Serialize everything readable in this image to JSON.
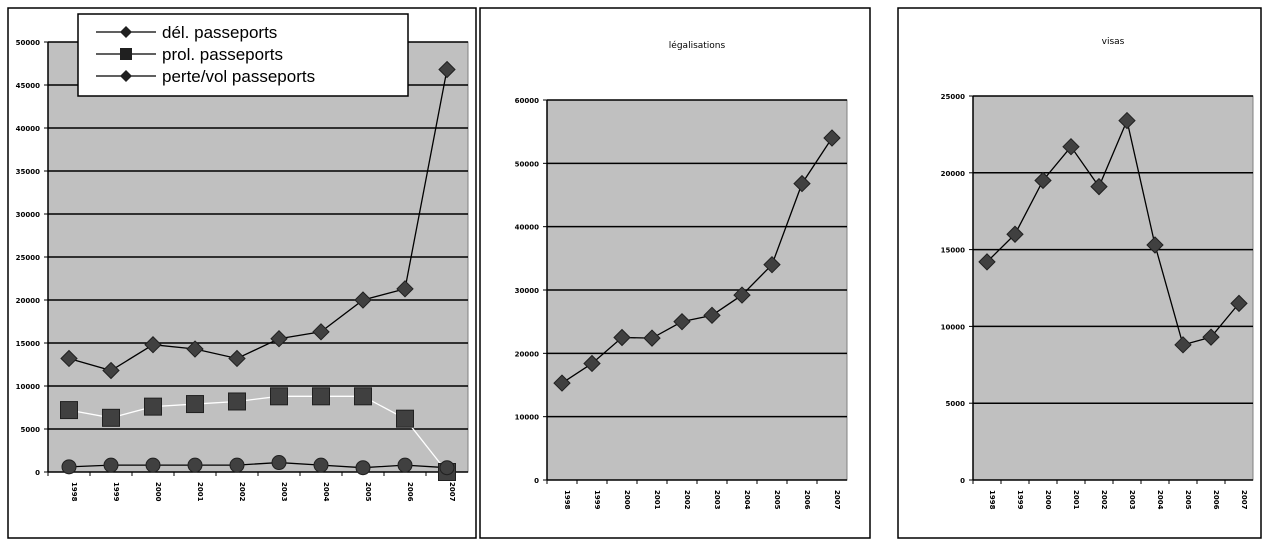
{
  "chart_data": [
    {
      "type": "line",
      "title": "",
      "xlabel": "",
      "ylabel": "",
      "categories": [
        "1998",
        "1999",
        "2000",
        "2001",
        "2002",
        "2003",
        "2004",
        "2005",
        "2006",
        "2007"
      ],
      "ylim": [
        0,
        50000
      ],
      "yticks": [
        "0",
        "5000",
        "10000",
        "15000",
        "20000",
        "25000",
        "30000",
        "35000",
        "40000",
        "45000",
        "50000"
      ],
      "grid": true,
      "legend_position": "top-left",
      "background": "#c0c0c0",
      "series": [
        {
          "name": "dél. passeports",
          "marker": "diamond",
          "line_color": "#000000",
          "values": [
            13200,
            11800,
            14800,
            14300,
            13200,
            15500,
            16300,
            20000,
            21300,
            46800
          ]
        },
        {
          "name": "prol. passeports",
          "marker": "square",
          "line_color": "#ffffff",
          "values": [
            7200,
            6300,
            7600,
            7900,
            8200,
            8800,
            8800,
            8800,
            6200,
            0
          ]
        },
        {
          "name": "perte/vol passeports",
          "marker": "circle",
          "line_color": "#000000",
          "values": [
            600,
            800,
            800,
            800,
            800,
            1100,
            800,
            500,
            800,
            500
          ]
        }
      ]
    },
    {
      "type": "line",
      "title": "légalisations",
      "xlabel": "",
      "ylabel": "",
      "categories": [
        "1998",
        "1999",
        "2000",
        "2001",
        "2002",
        "2003",
        "2004",
        "2005",
        "2006",
        "2007"
      ],
      "ylim": [
        0,
        60000
      ],
      "yticks": [
        "0",
        "10000",
        "20000",
        "30000",
        "40000",
        "50000",
        "60000"
      ],
      "grid": true,
      "background": "#c0c0c0",
      "series": [
        {
          "name": "",
          "marker": "diamond",
          "line_color": "#000000",
          "values": [
            15300,
            18400,
            22500,
            22400,
            25000,
            26000,
            29200,
            34000,
            46800,
            54000
          ]
        }
      ]
    },
    {
      "type": "line",
      "title": "visas",
      "xlabel": "",
      "ylabel": "",
      "categories": [
        "1998",
        "1999",
        "2000",
        "2001",
        "2002",
        "2003",
        "2004",
        "2005",
        "2006",
        "2007"
      ],
      "ylim": [
        0,
        25000
      ],
      "yticks": [
        "0",
        "5000",
        "10000",
        "15000",
        "20000",
        "25000"
      ],
      "grid": true,
      "background": "#c0c0c0",
      "series": [
        {
          "name": "",
          "marker": "diamond",
          "line_color": "#000000",
          "values": [
            14200,
            16000,
            19500,
            21700,
            19100,
            23400,
            15300,
            8800,
            9300,
            11500
          ]
        }
      ]
    }
  ]
}
